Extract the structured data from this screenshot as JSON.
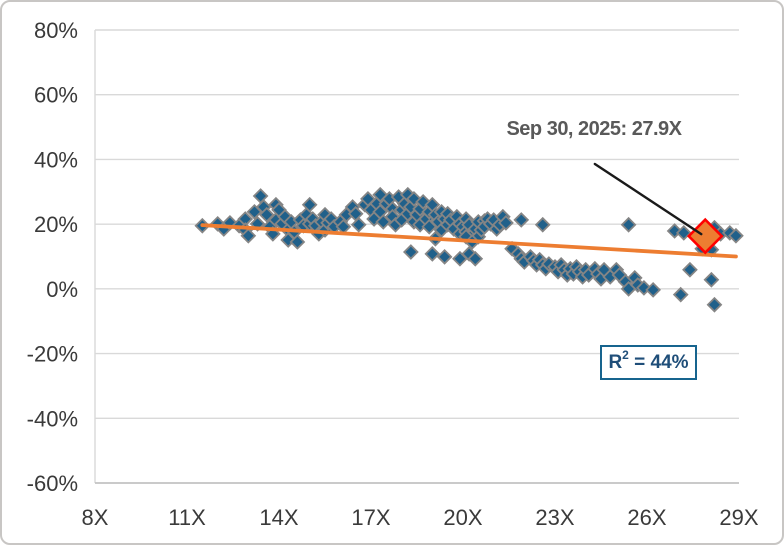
{
  "chart_data": {
    "type": "scatter",
    "title": "",
    "xlabel": "",
    "ylabel": "",
    "x_range": [
      8,
      29
    ],
    "y_range": [
      -60,
      80
    ],
    "x_tick_labels": [
      "8X",
      "11X",
      "14X",
      "17X",
      "20X",
      "23X",
      "26X",
      "29X"
    ],
    "x_tick_values": [
      8,
      11,
      14,
      17,
      20,
      23,
      26,
      29
    ],
    "y_tick_labels": [
      "80%",
      "60%",
      "40%",
      "20%",
      "0%",
      "-20%",
      "-40%",
      "-60%"
    ],
    "y_tick_values": [
      80,
      60,
      40,
      20,
      0,
      -20,
      -40,
      -60
    ],
    "grid": "horizontal-only",
    "legend": "none",
    "series": [
      {
        "name": "valuation-vs-return-observations",
        "marker": "diamond",
        "fill": "#20608a",
        "stroke": "#858585",
        "points": [
          [
            11.5,
            19.5
          ],
          [
            12.0,
            20.1
          ],
          [
            12.2,
            18.5
          ],
          [
            12.4,
            20.4
          ],
          [
            12.7,
            19.5
          ],
          [
            12.9,
            21.6
          ],
          [
            12.9,
            18.2
          ],
          [
            13.0,
            16.4
          ],
          [
            13.2,
            23.8
          ],
          [
            13.3,
            20.1
          ],
          [
            13.4,
            28.7
          ],
          [
            13.5,
            25.3
          ],
          [
            13.6,
            22.9
          ],
          [
            13.7,
            19.2
          ],
          [
            13.8,
            17.0
          ],
          [
            13.9,
            26.0
          ],
          [
            13.9,
            21.3
          ],
          [
            14.0,
            24.4
          ],
          [
            14.1,
            20.1
          ],
          [
            14.2,
            22.3
          ],
          [
            14.3,
            18.2
          ],
          [
            14.3,
            15.1
          ],
          [
            14.4,
            20.7
          ],
          [
            14.5,
            17.6
          ],
          [
            14.6,
            14.5
          ],
          [
            14.7,
            21.3
          ],
          [
            14.8,
            19.5
          ],
          [
            14.9,
            22.9
          ],
          [
            15.0,
            20.1
          ],
          [
            15.0,
            26.0
          ],
          [
            15.1,
            21.6
          ],
          [
            15.2,
            19.5
          ],
          [
            15.3,
            17.0
          ],
          [
            15.4,
            20.7
          ],
          [
            15.5,
            22.9
          ],
          [
            15.5,
            18.2
          ],
          [
            15.6,
            20.4
          ],
          [
            15.7,
            21.6
          ],
          [
            15.8,
            19.2
          ],
          [
            16.0,
            20.7
          ],
          [
            16.1,
            19.2
          ],
          [
            16.2,
            22.9
          ],
          [
            16.4,
            25.3
          ],
          [
            16.5,
            23.2
          ],
          [
            16.6,
            19.8
          ],
          [
            16.8,
            26.0
          ],
          [
            16.9,
            27.8
          ],
          [
            17.0,
            24.4
          ],
          [
            17.1,
            21.6
          ],
          [
            17.2,
            26.3
          ],
          [
            17.3,
            23.8
          ],
          [
            17.3,
            29.1
          ],
          [
            17.4,
            20.7
          ],
          [
            17.5,
            26.3
          ],
          [
            17.6,
            27.8
          ],
          [
            17.7,
            24.7
          ],
          [
            17.7,
            22.3
          ],
          [
            17.8,
            19.8
          ],
          [
            17.9,
            28.4
          ],
          [
            18.0,
            24.4
          ],
          [
            18.0,
            21.3
          ],
          [
            18.1,
            26.3
          ],
          [
            18.2,
            29.1
          ],
          [
            18.2,
            23.2
          ],
          [
            18.3,
            25.3
          ],
          [
            18.4,
            20.7
          ],
          [
            18.4,
            27.8
          ],
          [
            18.5,
            22.9
          ],
          [
            18.6,
            19.8
          ],
          [
            18.6,
            24.7
          ],
          [
            18.7,
            26.9
          ],
          [
            18.8,
            21.6
          ],
          [
            18.9,
            23.8
          ],
          [
            18.9,
            19.2
          ],
          [
            19.0,
            26.0
          ],
          [
            19.1,
            22.9
          ],
          [
            19.1,
            15.5
          ],
          [
            19.2,
            20.7
          ],
          [
            19.3,
            23.8
          ],
          [
            19.3,
            18.2
          ],
          [
            19.4,
            21.6
          ],
          [
            19.5,
            19.8
          ],
          [
            19.5,
            23.2
          ],
          [
            19.6,
            21.3
          ],
          [
            19.7,
            18.5
          ],
          [
            19.8,
            22.3
          ],
          [
            19.9,
            20.1
          ],
          [
            19.9,
            17.0
          ],
          [
            20.0,
            19.2
          ],
          [
            20.1,
            21.6
          ],
          [
            20.1,
            17.6
          ],
          [
            20.2,
            19.8
          ],
          [
            20.3,
            16.7
          ],
          [
            20.4,
            18.5
          ],
          [
            20.5,
            20.7
          ],
          [
            20.5,
            16.1
          ],
          [
            20.6,
            18.2
          ],
          [
            18.3,
            11.4
          ],
          [
            19.0,
            10.8
          ],
          [
            19.4,
            9.9
          ],
          [
            19.9,
            9.3
          ],
          [
            20.2,
            10.8
          ],
          [
            20.4,
            9.3
          ],
          [
            20.1,
            16.1
          ],
          [
            20.3,
            14.5
          ],
          [
            20.7,
            21.0
          ],
          [
            20.7,
            19.2
          ],
          [
            20.8,
            21.6
          ],
          [
            20.9,
            20.1
          ],
          [
            21.0,
            21.3
          ],
          [
            21.1,
            18.5
          ],
          [
            21.2,
            19.8
          ],
          [
            21.3,
            22.3
          ],
          [
            21.4,
            20.4
          ],
          [
            21.9,
            21.3
          ],
          [
            22.6,
            19.8
          ],
          [
            21.6,
            12.4
          ],
          [
            21.8,
            10.8
          ],
          [
            21.9,
            9.3
          ],
          [
            22.0,
            8.3
          ],
          [
            22.2,
            9.9
          ],
          [
            22.3,
            8.7
          ],
          [
            22.4,
            7.4
          ],
          [
            22.5,
            9.0
          ],
          [
            22.6,
            7.4
          ],
          [
            22.7,
            6.2
          ],
          [
            22.8,
            7.7
          ],
          [
            23.0,
            6.8
          ],
          [
            23.1,
            5.3
          ],
          [
            23.2,
            7.4
          ],
          [
            23.3,
            5.9
          ],
          [
            23.4,
            4.3
          ],
          [
            23.5,
            6.2
          ],
          [
            23.6,
            4.6
          ],
          [
            23.7,
            6.8
          ],
          [
            23.8,
            5.3
          ],
          [
            23.9,
            3.7
          ],
          [
            24.0,
            5.9
          ],
          [
            24.1,
            4.3
          ],
          [
            24.3,
            6.2
          ],
          [
            24.4,
            4.6
          ],
          [
            24.5,
            3.1
          ],
          [
            24.6,
            5.9
          ],
          [
            24.8,
            3.7
          ],
          [
            25.0,
            5.9
          ],
          [
            25.1,
            4.3
          ],
          [
            25.3,
            2.2
          ],
          [
            25.4,
            0.0
          ],
          [
            25.6,
            3.4
          ],
          [
            25.7,
            1.2
          ],
          [
            25.9,
            0.3
          ],
          [
            26.2,
            -0.3
          ],
          [
            25.4,
            19.8
          ],
          [
            26.9,
            17.9
          ],
          [
            27.2,
            17.3
          ],
          [
            27.4,
            5.9
          ],
          [
            28.1,
            2.8
          ],
          [
            27.1,
            -1.8
          ],
          [
            28.2,
            -4.9
          ],
          [
            27.8,
            12.4
          ],
          [
            28.1,
            12.1
          ],
          [
            28.0,
            14.2
          ],
          [
            28.2,
            18.9
          ],
          [
            28.4,
            17.0
          ],
          [
            28.7,
            17.3
          ],
          [
            28.9,
            16.4
          ]
        ]
      }
    ],
    "highlight_point": {
      "x": 27.9,
      "y": 16.3,
      "fill": "#ed7d31",
      "stroke": "#ff0000",
      "label": "Sep 30, 2025: 27.9X"
    },
    "trendline": {
      "x1": 11.5,
      "y1": 19.7,
      "x2": 28.9,
      "y2": 10.0,
      "color": "#ed7d31"
    },
    "annotation": {
      "text": "Sep 30, 2025: 27.9X",
      "color": "#595959",
      "leader_line": {
        "x1": 24.3,
        "y1": 38.6,
        "color": "#1a1a1a"
      }
    },
    "r_squared": {
      "prefix": "R",
      "sup": "2",
      "suffix": " = 44%",
      "display": "R² = 44%",
      "text_color": "#1f4e79",
      "border_color": "#17648e"
    },
    "colors": {
      "gridline": "#d9d9d9",
      "axis_line": "#bfbfbf",
      "tick_label": "#3a3a3a",
      "frame_border": "#c8c6c4"
    }
  }
}
